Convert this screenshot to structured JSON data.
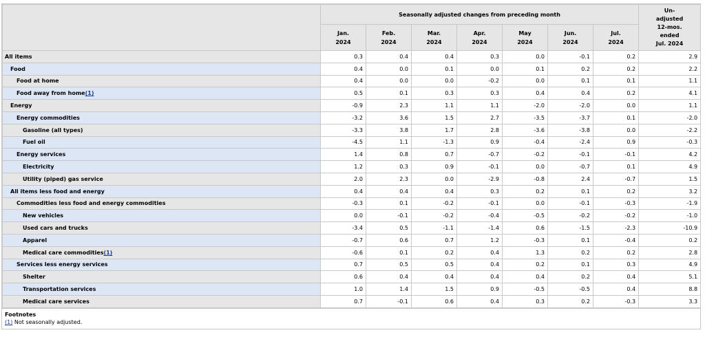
{
  "header": {
    "group": "Seasonally adjusted changes from preceding month",
    "unadjusted": [
      "Un-",
      "adjusted",
      "12-mos.",
      "ended",
      "Jul. 2024"
    ],
    "months": [
      [
        "Jan.",
        "2024"
      ],
      [
        "Feb.",
        "2024"
      ],
      [
        "Mar.",
        "2024"
      ],
      [
        "Apr.",
        "2024"
      ],
      [
        "May",
        "2024"
      ],
      [
        "Jun.",
        "2024"
      ],
      [
        "Jul.",
        "2024"
      ]
    ]
  },
  "rows": [
    {
      "label": "All items",
      "level": 0,
      "fn": "",
      "values": [
        "0.3",
        "0.4",
        "0.4",
        "0.3",
        "0.0",
        "-0.1",
        "0.2",
        "2.9"
      ]
    },
    {
      "label": "Food",
      "level": 1,
      "fn": "",
      "values": [
        "0.4",
        "0.0",
        "0.1",
        "0.0",
        "0.1",
        "0.2",
        "0.2",
        "2.2"
      ]
    },
    {
      "label": "Food at home",
      "level": 2,
      "fn": "",
      "values": [
        "0.4",
        "0.0",
        "0.0",
        "-0.2",
        "0.0",
        "0.1",
        "0.1",
        "1.1"
      ]
    },
    {
      "label": "Food away from home",
      "level": 2,
      "fn": "(1)",
      "values": [
        "0.5",
        "0.1",
        "0.3",
        "0.3",
        "0.4",
        "0.4",
        "0.2",
        "4.1"
      ]
    },
    {
      "label": "Energy",
      "level": 1,
      "fn": "",
      "values": [
        "-0.9",
        "2.3",
        "1.1",
        "1.1",
        "-2.0",
        "-2.0",
        "0.0",
        "1.1"
      ]
    },
    {
      "label": "Energy commodities",
      "level": 2,
      "fn": "",
      "values": [
        "-3.2",
        "3.6",
        "1.5",
        "2.7",
        "-3.5",
        "-3.7",
        "0.1",
        "-2.0"
      ]
    },
    {
      "label": "Gasoline (all types)",
      "level": 3,
      "fn": "",
      "values": [
        "-3.3",
        "3.8",
        "1.7",
        "2.8",
        "-3.6",
        "-3.8",
        "0.0",
        "-2.2"
      ]
    },
    {
      "label": "Fuel oil",
      "level": 3,
      "fn": "",
      "values": [
        "-4.5",
        "1.1",
        "-1.3",
        "0.9",
        "-0.4",
        "-2.4",
        "0.9",
        "-0.3"
      ]
    },
    {
      "label": "Energy services",
      "level": 2,
      "fn": "",
      "values": [
        "1.4",
        "0.8",
        "0.7",
        "-0.7",
        "-0.2",
        "-0.1",
        "-0.1",
        "4.2"
      ]
    },
    {
      "label": "Electricity",
      "level": 3,
      "fn": "",
      "values": [
        "1.2",
        "0.3",
        "0.9",
        "-0.1",
        "0.0",
        "-0.7",
        "0.1",
        "4.9"
      ]
    },
    {
      "label": "Utility (piped) gas service",
      "level": 3,
      "fn": "",
      "values": [
        "2.0",
        "2.3",
        "0.0",
        "-2.9",
        "-0.8",
        "2.4",
        "-0.7",
        "1.5"
      ]
    },
    {
      "label": "All items less food and energy",
      "level": 1,
      "fn": "",
      "values": [
        "0.4",
        "0.4",
        "0.4",
        "0.3",
        "0.2",
        "0.1",
        "0.2",
        "3.2"
      ]
    },
    {
      "label": "Commodities less food and energy commodities",
      "level": 2,
      "fn": "",
      "values": [
        "-0.3",
        "0.1",
        "-0.2",
        "-0.1",
        "0.0",
        "-0.1",
        "-0.3",
        "-1.9"
      ]
    },
    {
      "label": "New vehicles",
      "level": 3,
      "fn": "",
      "values": [
        "0.0",
        "-0.1",
        "-0.2",
        "-0.4",
        "-0.5",
        "-0.2",
        "-0.2",
        "-1.0"
      ]
    },
    {
      "label": "Used cars and trucks",
      "level": 3,
      "fn": "",
      "values": [
        "-3.4",
        "0.5",
        "-1.1",
        "-1.4",
        "0.6",
        "-1.5",
        "-2.3",
        "-10.9"
      ]
    },
    {
      "label": "Apparel",
      "level": 3,
      "fn": "",
      "values": [
        "-0.7",
        "0.6",
        "0.7",
        "1.2",
        "-0.3",
        "0.1",
        "-0.4",
        "0.2"
      ]
    },
    {
      "label": "Medical care commodities",
      "level": 3,
      "fn": "(1)",
      "values": [
        "-0.6",
        "0.1",
        "0.2",
        "0.4",
        "1.3",
        "0.2",
        "0.2",
        "2.8"
      ]
    },
    {
      "label": "Services less energy services",
      "level": 2,
      "fn": "",
      "values": [
        "0.7",
        "0.5",
        "0.5",
        "0.4",
        "0.2",
        "0.1",
        "0.3",
        "4.9"
      ]
    },
    {
      "label": "Shelter",
      "level": 3,
      "fn": "",
      "values": [
        "0.6",
        "0.4",
        "0.4",
        "0.4",
        "0.4",
        "0.2",
        "0.4",
        "5.1"
      ]
    },
    {
      "label": "Transportation services",
      "level": 3,
      "fn": "",
      "values": [
        "1.0",
        "1.4",
        "1.5",
        "0.9",
        "-0.5",
        "-0.5",
        "0.4",
        "8.8"
      ]
    },
    {
      "label": "Medical care services",
      "level": 3,
      "fn": "",
      "values": [
        "0.7",
        "-0.1",
        "0.6",
        "0.4",
        "0.3",
        "0.2",
        "-0.3",
        "3.3"
      ]
    }
  ],
  "footnotes": {
    "title": "Footnotes",
    "marker": "(1)",
    "text": " Not seasonally adjusted."
  },
  "colors": {
    "header_bg": "#e6e6e6",
    "highlight_row_bg": "#dce6f5",
    "border": "#c8c8c8",
    "link": "#1a3c8f"
  }
}
